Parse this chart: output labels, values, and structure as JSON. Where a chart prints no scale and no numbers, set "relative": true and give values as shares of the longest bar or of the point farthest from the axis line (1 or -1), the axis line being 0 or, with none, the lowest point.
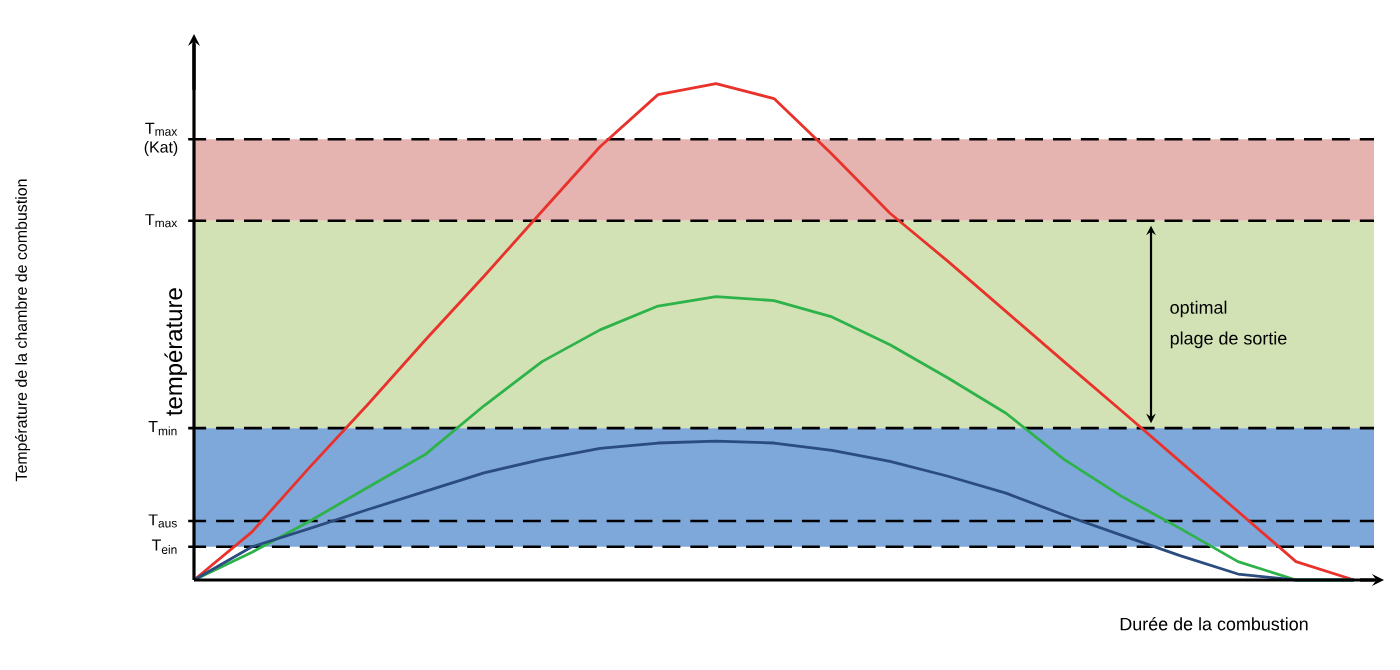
{
  "chart_data": {
    "type": "line",
    "relative": true,
    "xlabel": "Durée de la combustion",
    "ylabel": "température",
    "annotations": [
      "Température de la chambre de combustion",
      "optimal",
      "plage de sortie"
    ],
    "categories": [
      null,
      null,
      null,
      null,
      null,
      null,
      null,
      null,
      null,
      null,
      null,
      null,
      null,
      null,
      null,
      null,
      null,
      null,
      null,
      null,
      null
    ],
    "series": [
      {
        "color": "#e8322b",
        "values": [
          0,
          0.097,
          0.228,
          0.354,
          0.485,
          0.612,
          0.743,
          0.873,
          0.978,
          1.0,
          0.97,
          0.858,
          0.739,
          0.642,
          0.541,
          0.44,
          0.34,
          0.239,
          0.138,
          0.037,
          0
        ]
      },
      {
        "color": "#2db34a",
        "values": [
          0,
          0.056,
          0.119,
          0.187,
          0.254,
          0.351,
          0.44,
          0.504,
          0.552,
          0.571,
          0.563,
          0.53,
          0.474,
          0.407,
          0.336,
          0.243,
          0.168,
          0.104,
          0.037,
          0,
          0
        ]
      },
      {
        "color": "#2b4c7e",
        "values": [
          0,
          0.067,
          0.104,
          0.142,
          0.179,
          0.216,
          0.243,
          0.265,
          0.276,
          0.28,
          0.276,
          0.261,
          0.239,
          0.209,
          0.175,
          0.131,
          0.09,
          0.049,
          0.012,
          0,
          0
        ]
      }
    ],
    "bands": [
      {
        "axis": "y",
        "from": 0.724,
        "to": 0.888,
        "color": "#e6b4b0"
      },
      {
        "axis": "y",
        "from": 0.306,
        "to": 0.724,
        "color": "#d3e2b4"
      },
      {
        "axis": "y",
        "from": 0.067,
        "to": 0.306,
        "color": "#7fa8da"
      }
    ],
    "ref_lines": [
      {
        "axis": "y",
        "value": 0.888,
        "label": "T$_{max}$ (Kat)",
        "line_style": "dashed"
      },
      {
        "axis": "y",
        "value": 0.724,
        "label": "T$_{max}$",
        "line_style": "dashed"
      },
      {
        "axis": "y",
        "value": 0.306,
        "label": "T$_{min}$",
        "line_style": "dashed"
      },
      {
        "axis": "y",
        "value": 0.119,
        "label": "T$_{aus}$",
        "line_style": "dashed"
      },
      {
        "axis": "y",
        "value": 0.067,
        "label": "T$_{ein}$",
        "line_style": "dashed"
      }
    ]
  }
}
